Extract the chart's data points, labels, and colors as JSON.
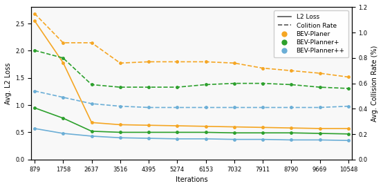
{
  "iterations": [
    879,
    1758,
    2637,
    3516,
    4395,
    5274,
    6153,
    7032,
    7911,
    8790,
    9669,
    10548
  ],
  "l2_orange_solid": [
    2.55,
    1.78,
    0.68,
    0.64,
    0.63,
    0.62,
    0.61,
    0.6,
    0.59,
    0.58,
    0.57,
    0.57
  ],
  "l2_green_solid": [
    0.95,
    0.76,
    0.52,
    0.5,
    0.5,
    0.5,
    0.5,
    0.49,
    0.49,
    0.49,
    0.48,
    0.47
  ],
  "l2_blue_solid": [
    0.57,
    0.48,
    0.43,
    0.4,
    0.39,
    0.38,
    0.38,
    0.37,
    0.37,
    0.36,
    0.36,
    0.35
  ],
  "cr_orange_dashed": [
    1.15,
    0.92,
    0.92,
    0.76,
    0.77,
    0.77,
    0.77,
    0.76,
    0.72,
    0.7,
    0.68,
    0.65
  ],
  "cr_green_dashed": [
    0.86,
    0.8,
    0.59,
    0.57,
    0.57,
    0.57,
    0.59,
    0.6,
    0.6,
    0.59,
    0.57,
    0.56
  ],
  "cr_blue_dashed": [
    0.54,
    0.49,
    0.44,
    0.42,
    0.41,
    0.41,
    0.41,
    0.41,
    0.41,
    0.41,
    0.41,
    0.42
  ],
  "color_orange": "#f5a623",
  "color_green": "#2ca02c",
  "color_blue": "#6baed6",
  "ylabel_left": "Avg. L2 Loss",
  "ylabel_right": "Avg. Collision Rate (%)",
  "xlabel": "Iterations",
  "ylim_left": [
    0.0,
    2.8
  ],
  "ylim_right": [
    0.0,
    1.2
  ],
  "legend_labels": [
    "L2 Loss",
    "Colition Rate",
    "BEV-Planer",
    "BEV-Planner+",
    "BEV-Planner++"
  ],
  "bg_color": "#ffffff",
  "plot_bg": "#f8f8f8",
  "figsize": [
    5.54,
    2.72
  ],
  "dpi": 100,
  "lw": 1.2,
  "ms": 2.5,
  "legend_fontsize": 6.5,
  "axis_fontsize": 7,
  "tick_fontsize": 6
}
